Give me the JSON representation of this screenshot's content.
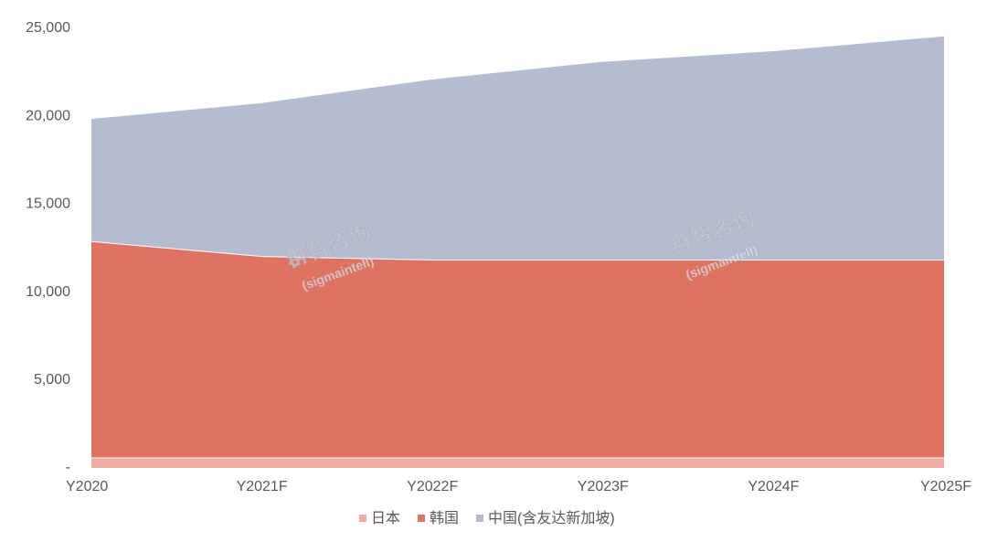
{
  "chart_data": {
    "type": "stacked_area",
    "categories": [
      "Y2020",
      "Y2021F",
      "Y2022F",
      "Y2023F",
      "Y2024F",
      "Y2025F"
    ],
    "series": [
      {
        "name": "日本",
        "color": "#eeada4",
        "values": [
          600,
          600,
          600,
          600,
          600,
          600
        ]
      },
      {
        "name": "韩国",
        "color": "#e07262",
        "values": [
          12300,
          11450,
          11250,
          11250,
          11250,
          11250
        ]
      },
      {
        "name": "中国(含友达新加坡)",
        "color": "#b5bccf",
        "values": [
          7000,
          8750,
          10300,
          11300,
          11900,
          12750
        ]
      }
    ],
    "ylim": [
      0,
      25000
    ],
    "yticks": [
      {
        "value": 0,
        "label": "-"
      },
      {
        "value": 5000,
        "label": "5,000"
      },
      {
        "value": 10000,
        "label": "10,000"
      },
      {
        "value": 15000,
        "label": "15,000"
      },
      {
        "value": 20000,
        "label": "20,000"
      },
      {
        "value": 25000,
        "label": "25,000"
      }
    ],
    "legend": "bottom",
    "annotations": [
      "群智咨询",
      "(sigmaintell)",
      "群智咨询",
      "(sigmaintell)"
    ]
  }
}
